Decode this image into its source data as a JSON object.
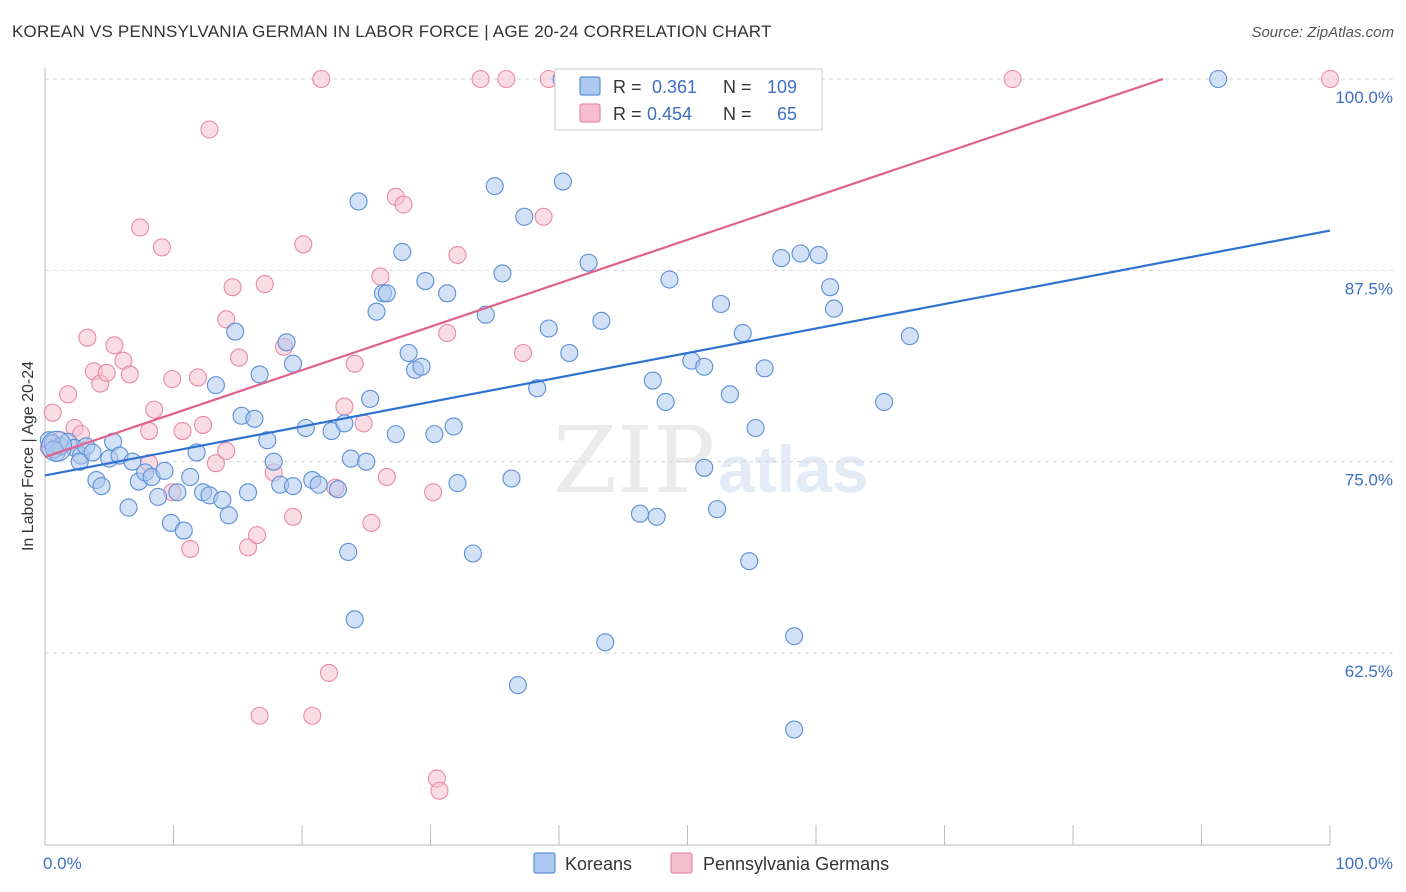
{
  "title": "KOREAN VS PENNSYLVANIA GERMAN IN LABOR FORCE | AGE 20-24 CORRELATION CHART",
  "source": "Source: ZipAtlas.com",
  "watermark": {
    "zip": "ZIP",
    "atlas": "atlas"
  },
  "legend_top": {
    "r_label": "R =",
    "n_label": "N =",
    "rows": [
      {
        "r": "0.361",
        "n": "109"
      },
      {
        "r": "0.454",
        "n": "65"
      }
    ]
  },
  "colors": {
    "korean_fill": "#adc8ee",
    "korean_stroke": "#5b8fd6",
    "korean_line": "#2f72d0",
    "pg_fill": "#f5bfd0",
    "pg_stroke": "#e98aa8",
    "pg_line": "#e0628c",
    "tick_text": "#3d6fc4",
    "grid": "#d5d5d5"
  },
  "chart_data": {
    "type": "scatter",
    "title": "KOREAN VS PENNSYLVANIA GERMAN IN LABOR FORCE | AGE 20-24 CORRELATION CHART",
    "xlabel": "",
    "ylabel": "In Labor Force | Age 20-24",
    "xlim": [
      0,
      100
    ],
    "ylim": [
      50.5,
      102
    ],
    "x_tick_labels": [
      "0.0%",
      "100.0%"
    ],
    "y_ticks": [
      62.5,
      75.0,
      87.5,
      100.0
    ],
    "y_tick_labels": [
      "62.5%",
      "75.0%",
      "87.5%",
      "100.0%"
    ],
    "grid": "horizontal dashed",
    "legend_position": "bottom",
    "series": [
      {
        "name": "Koreans",
        "r": 0.361,
        "n": 109,
        "trend": {
          "x": [
            0,
            100
          ],
          "y": [
            74.1,
            90.1
          ]
        },
        "points": [
          [
            0.3,
            76.4
          ],
          [
            0.6,
            76.2
          ],
          [
            0.9,
            75.6
          ],
          [
            1.2,
            76.0
          ],
          [
            1.8,
            76.3
          ],
          [
            2.3,
            75.9
          ],
          [
            2.8,
            75.4
          ],
          [
            2.7,
            75.0
          ],
          [
            3.2,
            76.0
          ],
          [
            3.7,
            75.6
          ],
          [
            4.0,
            73.8
          ],
          [
            4.4,
            73.4
          ],
          [
            5.0,
            75.2
          ],
          [
            5.3,
            76.3
          ],
          [
            5.8,
            75.4
          ],
          [
            6.5,
            72.0
          ],
          [
            6.8,
            75.0
          ],
          [
            7.3,
            73.7
          ],
          [
            7.8,
            74.3
          ],
          [
            8.3,
            74.0
          ],
          [
            8.8,
            72.7
          ],
          [
            9.3,
            74.4
          ],
          [
            9.8,
            71.0
          ],
          [
            10.3,
            73.0
          ],
          [
            10.8,
            70.5
          ],
          [
            11.3,
            74.0
          ],
          [
            11.8,
            75.6
          ],
          [
            12.3,
            73.0
          ],
          [
            12.8,
            72.8
          ],
          [
            13.3,
            80.0
          ],
          [
            13.8,
            72.5
          ],
          [
            14.3,
            71.5
          ],
          [
            14.8,
            83.5
          ],
          [
            15.3,
            78.0
          ],
          [
            15.8,
            73.0
          ],
          [
            16.3,
            77.8
          ],
          [
            16.7,
            80.7
          ],
          [
            17.3,
            76.4
          ],
          [
            17.8,
            75.0
          ],
          [
            18.3,
            73.5
          ],
          [
            18.8,
            82.8
          ],
          [
            19.3,
            81.4
          ],
          [
            19.3,
            73.4
          ],
          [
            20.3,
            77.2
          ],
          [
            20.8,
            73.8
          ],
          [
            21.3,
            73.5
          ],
          [
            22.3,
            77.0
          ],
          [
            22.8,
            73.2
          ],
          [
            23.3,
            77.5
          ],
          [
            23.8,
            75.2
          ],
          [
            23.6,
            69.1
          ],
          [
            24.1,
            64.7
          ],
          [
            24.4,
            92.0
          ],
          [
            25.0,
            75.0
          ],
          [
            25.3,
            79.1
          ],
          [
            25.8,
            84.8
          ],
          [
            26.3,
            86.0
          ],
          [
            26.6,
            86.0
          ],
          [
            27.3,
            76.8
          ],
          [
            27.8,
            88.7
          ],
          [
            28.3,
            82.1
          ],
          [
            28.8,
            81.0
          ],
          [
            29.3,
            81.2
          ],
          [
            29.6,
            86.8
          ],
          [
            30.3,
            76.8
          ],
          [
            31.3,
            86.0
          ],
          [
            31.8,
            77.3
          ],
          [
            32.1,
            73.6
          ],
          [
            33.3,
            69.0
          ],
          [
            34.3,
            84.6
          ],
          [
            35.0,
            93.0
          ],
          [
            35.6,
            87.3
          ],
          [
            36.3,
            73.9
          ],
          [
            36.8,
            60.4
          ],
          [
            37.3,
            91.0
          ],
          [
            38.3,
            79.8
          ],
          [
            39.2,
            83.7
          ],
          [
            40.2,
            100.0
          ],
          [
            40.3,
            93.3
          ],
          [
            40.8,
            82.1
          ],
          [
            42.3,
            88.0
          ],
          [
            43.3,
            84.2
          ],
          [
            43.6,
            63.2
          ],
          [
            46.3,
            71.6
          ],
          [
            47.3,
            80.3
          ],
          [
            47.6,
            71.4
          ],
          [
            48.3,
            78.9
          ],
          [
            48.6,
            86.9
          ],
          [
            50.3,
            81.6
          ],
          [
            51.3,
            81.2
          ],
          [
            51.3,
            74.6
          ],
          [
            52.3,
            71.9
          ],
          [
            52.6,
            85.3
          ],
          [
            53.3,
            79.4
          ],
          [
            54.3,
            83.4
          ],
          [
            55.3,
            77.2
          ],
          [
            54.8,
            68.5
          ],
          [
            56.0,
            81.1
          ],
          [
            57.3,
            88.3
          ],
          [
            58.3,
            57.5
          ],
          [
            58.3,
            63.6
          ],
          [
            58.8,
            88.6
          ],
          [
            60.2,
            88.5
          ],
          [
            61.1,
            86.4
          ],
          [
            61.4,
            85.0
          ],
          [
            65.3,
            78.9
          ],
          [
            67.3,
            83.2
          ],
          [
            91.3,
            100.0
          ],
          [
            0.7,
            75.8
          ]
        ]
      },
      {
        "name": "Pennsylvania Germans",
        "r": 0.454,
        "n": 65,
        "trend": {
          "x": [
            0,
            87
          ],
          "y": [
            75.3,
            100.0
          ]
        },
        "points": [
          [
            0.3,
            75.9
          ],
          [
            0.6,
            78.2
          ],
          [
            1.2,
            76.4
          ],
          [
            1.8,
            79.4
          ],
          [
            2.3,
            77.2
          ],
          [
            2.8,
            76.8
          ],
          [
            3.3,
            83.1
          ],
          [
            3.8,
            80.9
          ],
          [
            4.3,
            80.1
          ],
          [
            4.8,
            80.8
          ],
          [
            5.4,
            82.6
          ],
          [
            6.1,
            81.6
          ],
          [
            6.6,
            80.7
          ],
          [
            7.4,
            90.3
          ],
          [
            8.1,
            77.0
          ],
          [
            8.5,
            78.4
          ],
          [
            9.1,
            89.0
          ],
          [
            9.9,
            80.4
          ],
          [
            10.7,
            77.0
          ],
          [
            11.3,
            69.3
          ],
          [
            11.9,
            80.5
          ],
          [
            12.3,
            77.4
          ],
          [
            12.8,
            96.7
          ],
          [
            13.3,
            74.9
          ],
          [
            14.1,
            84.3
          ],
          [
            14.6,
            86.4
          ],
          [
            15.1,
            81.8
          ],
          [
            15.8,
            69.4
          ],
          [
            16.5,
            70.2
          ],
          [
            17.1,
            86.6
          ],
          [
            17.8,
            74.3
          ],
          [
            18.6,
            82.5
          ],
          [
            19.3,
            71.4
          ],
          [
            20.1,
            89.2
          ],
          [
            20.8,
            58.4
          ],
          [
            21.5,
            100.0
          ],
          [
            22.1,
            61.2
          ],
          [
            22.6,
            73.3
          ],
          [
            23.3,
            78.6
          ],
          [
            24.1,
            81.4
          ],
          [
            24.8,
            77.5
          ],
          [
            25.4,
            71.0
          ],
          [
            26.1,
            87.1
          ],
          [
            26.6,
            74.0
          ],
          [
            27.3,
            92.3
          ],
          [
            27.9,
            91.8
          ],
          [
            30.5,
            54.3
          ],
          [
            30.7,
            53.5
          ],
          [
            30.2,
            73.0
          ],
          [
            31.3,
            83.4
          ],
          [
            32.1,
            88.5
          ],
          [
            33.9,
            100.0
          ],
          [
            35.9,
            100.0
          ],
          [
            37.2,
            82.1
          ],
          [
            38.8,
            91.0
          ],
          [
            39.2,
            100.0
          ],
          [
            40.8,
            100.0
          ],
          [
            42.8,
            100.0
          ],
          [
            47.3,
            100.0
          ],
          [
            75.3,
            100.0
          ],
          [
            100.0,
            100.0
          ],
          [
            16.7,
            58.4
          ],
          [
            14.1,
            75.7
          ],
          [
            8.1,
            74.9
          ],
          [
            9.9,
            73.0
          ]
        ]
      }
    ]
  }
}
